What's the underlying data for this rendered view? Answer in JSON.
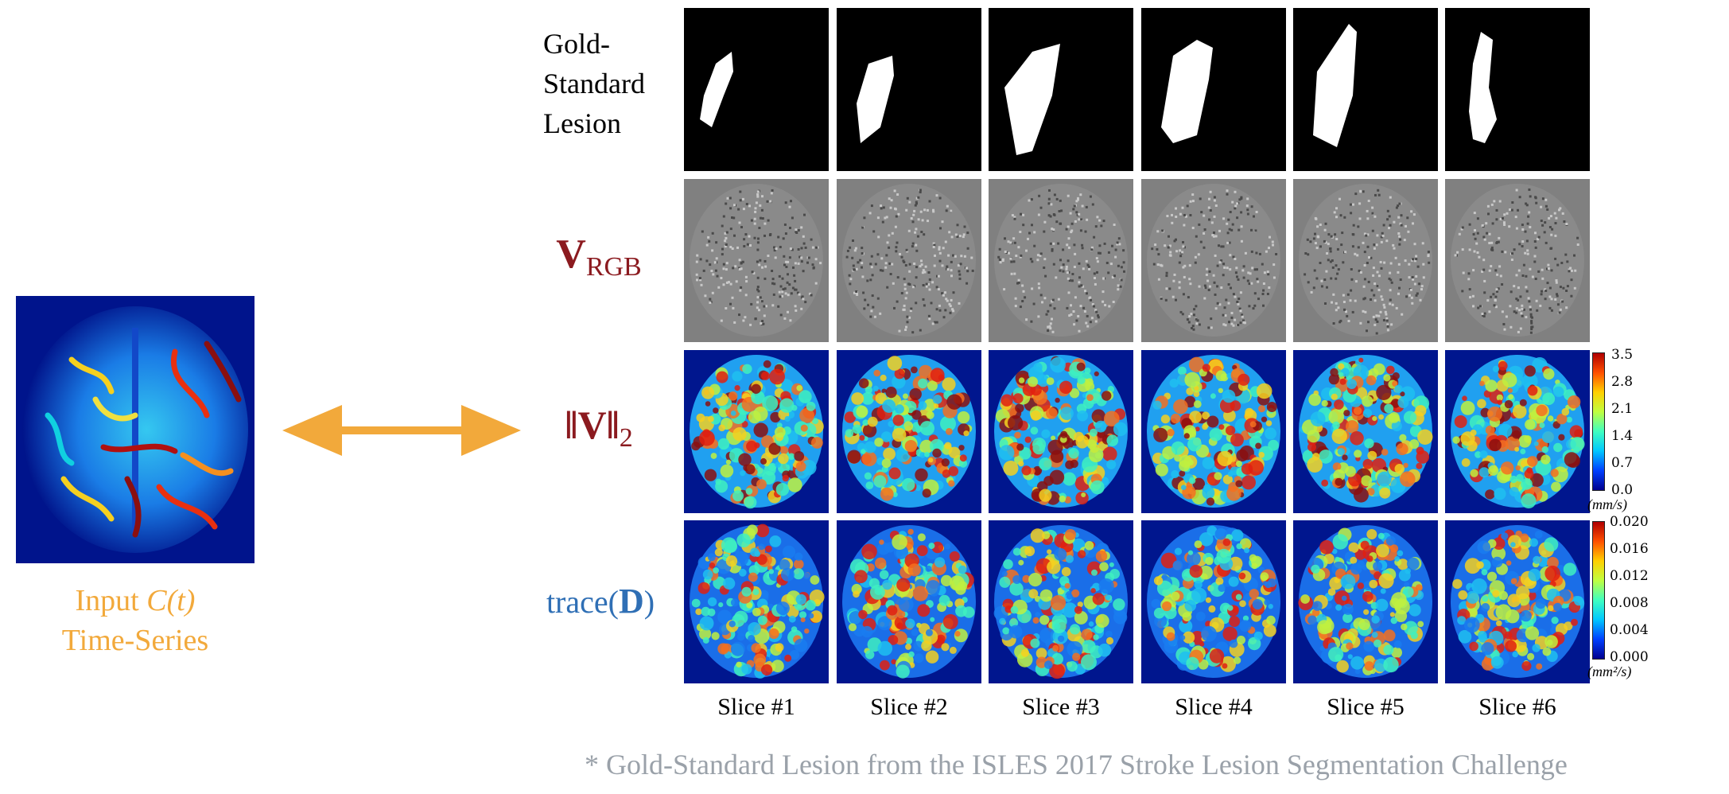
{
  "input": {
    "label_line1_prefix": "Input ",
    "label_math": "C(t)",
    "label_line2": "Time-Series"
  },
  "rows": {
    "gold_line1": "Gold-",
    "gold_line2": "Standard",
    "gold_line3": "Lesion",
    "vrgb_main": "V",
    "vrgb_sub": "RGB",
    "vnorm_main": "‖V‖",
    "vnorm_sub": "2",
    "trace_prefix": "trace(",
    "trace_bold": "D",
    "trace_suffix": ")"
  },
  "slices": [
    "Slice #1",
    "Slice #2",
    "Slice #3",
    "Slice #4",
    "Slice #5",
    "Slice #6"
  ],
  "colorbar_velocity": {
    "ticks": [
      "3.5",
      "2.8",
      "2.1",
      "1.4",
      "0.7",
      "0.0"
    ],
    "unit": "(mm/s)"
  },
  "colorbar_diffusion": {
    "ticks": [
      "0.020",
      "0.016",
      "0.012",
      "0.008",
      "0.004",
      "0.000"
    ],
    "unit": "(mm²/s)"
  },
  "footnote": "* Gold-Standard Lesion from the ISLES 2017 Stroke Lesion Segmentation Challenge",
  "colors": {
    "arrow": "#f2a93b",
    "label_red": "#8b1a1f",
    "label_blue": "#2f6fb5",
    "footnote_gray": "#9aa1a9"
  }
}
